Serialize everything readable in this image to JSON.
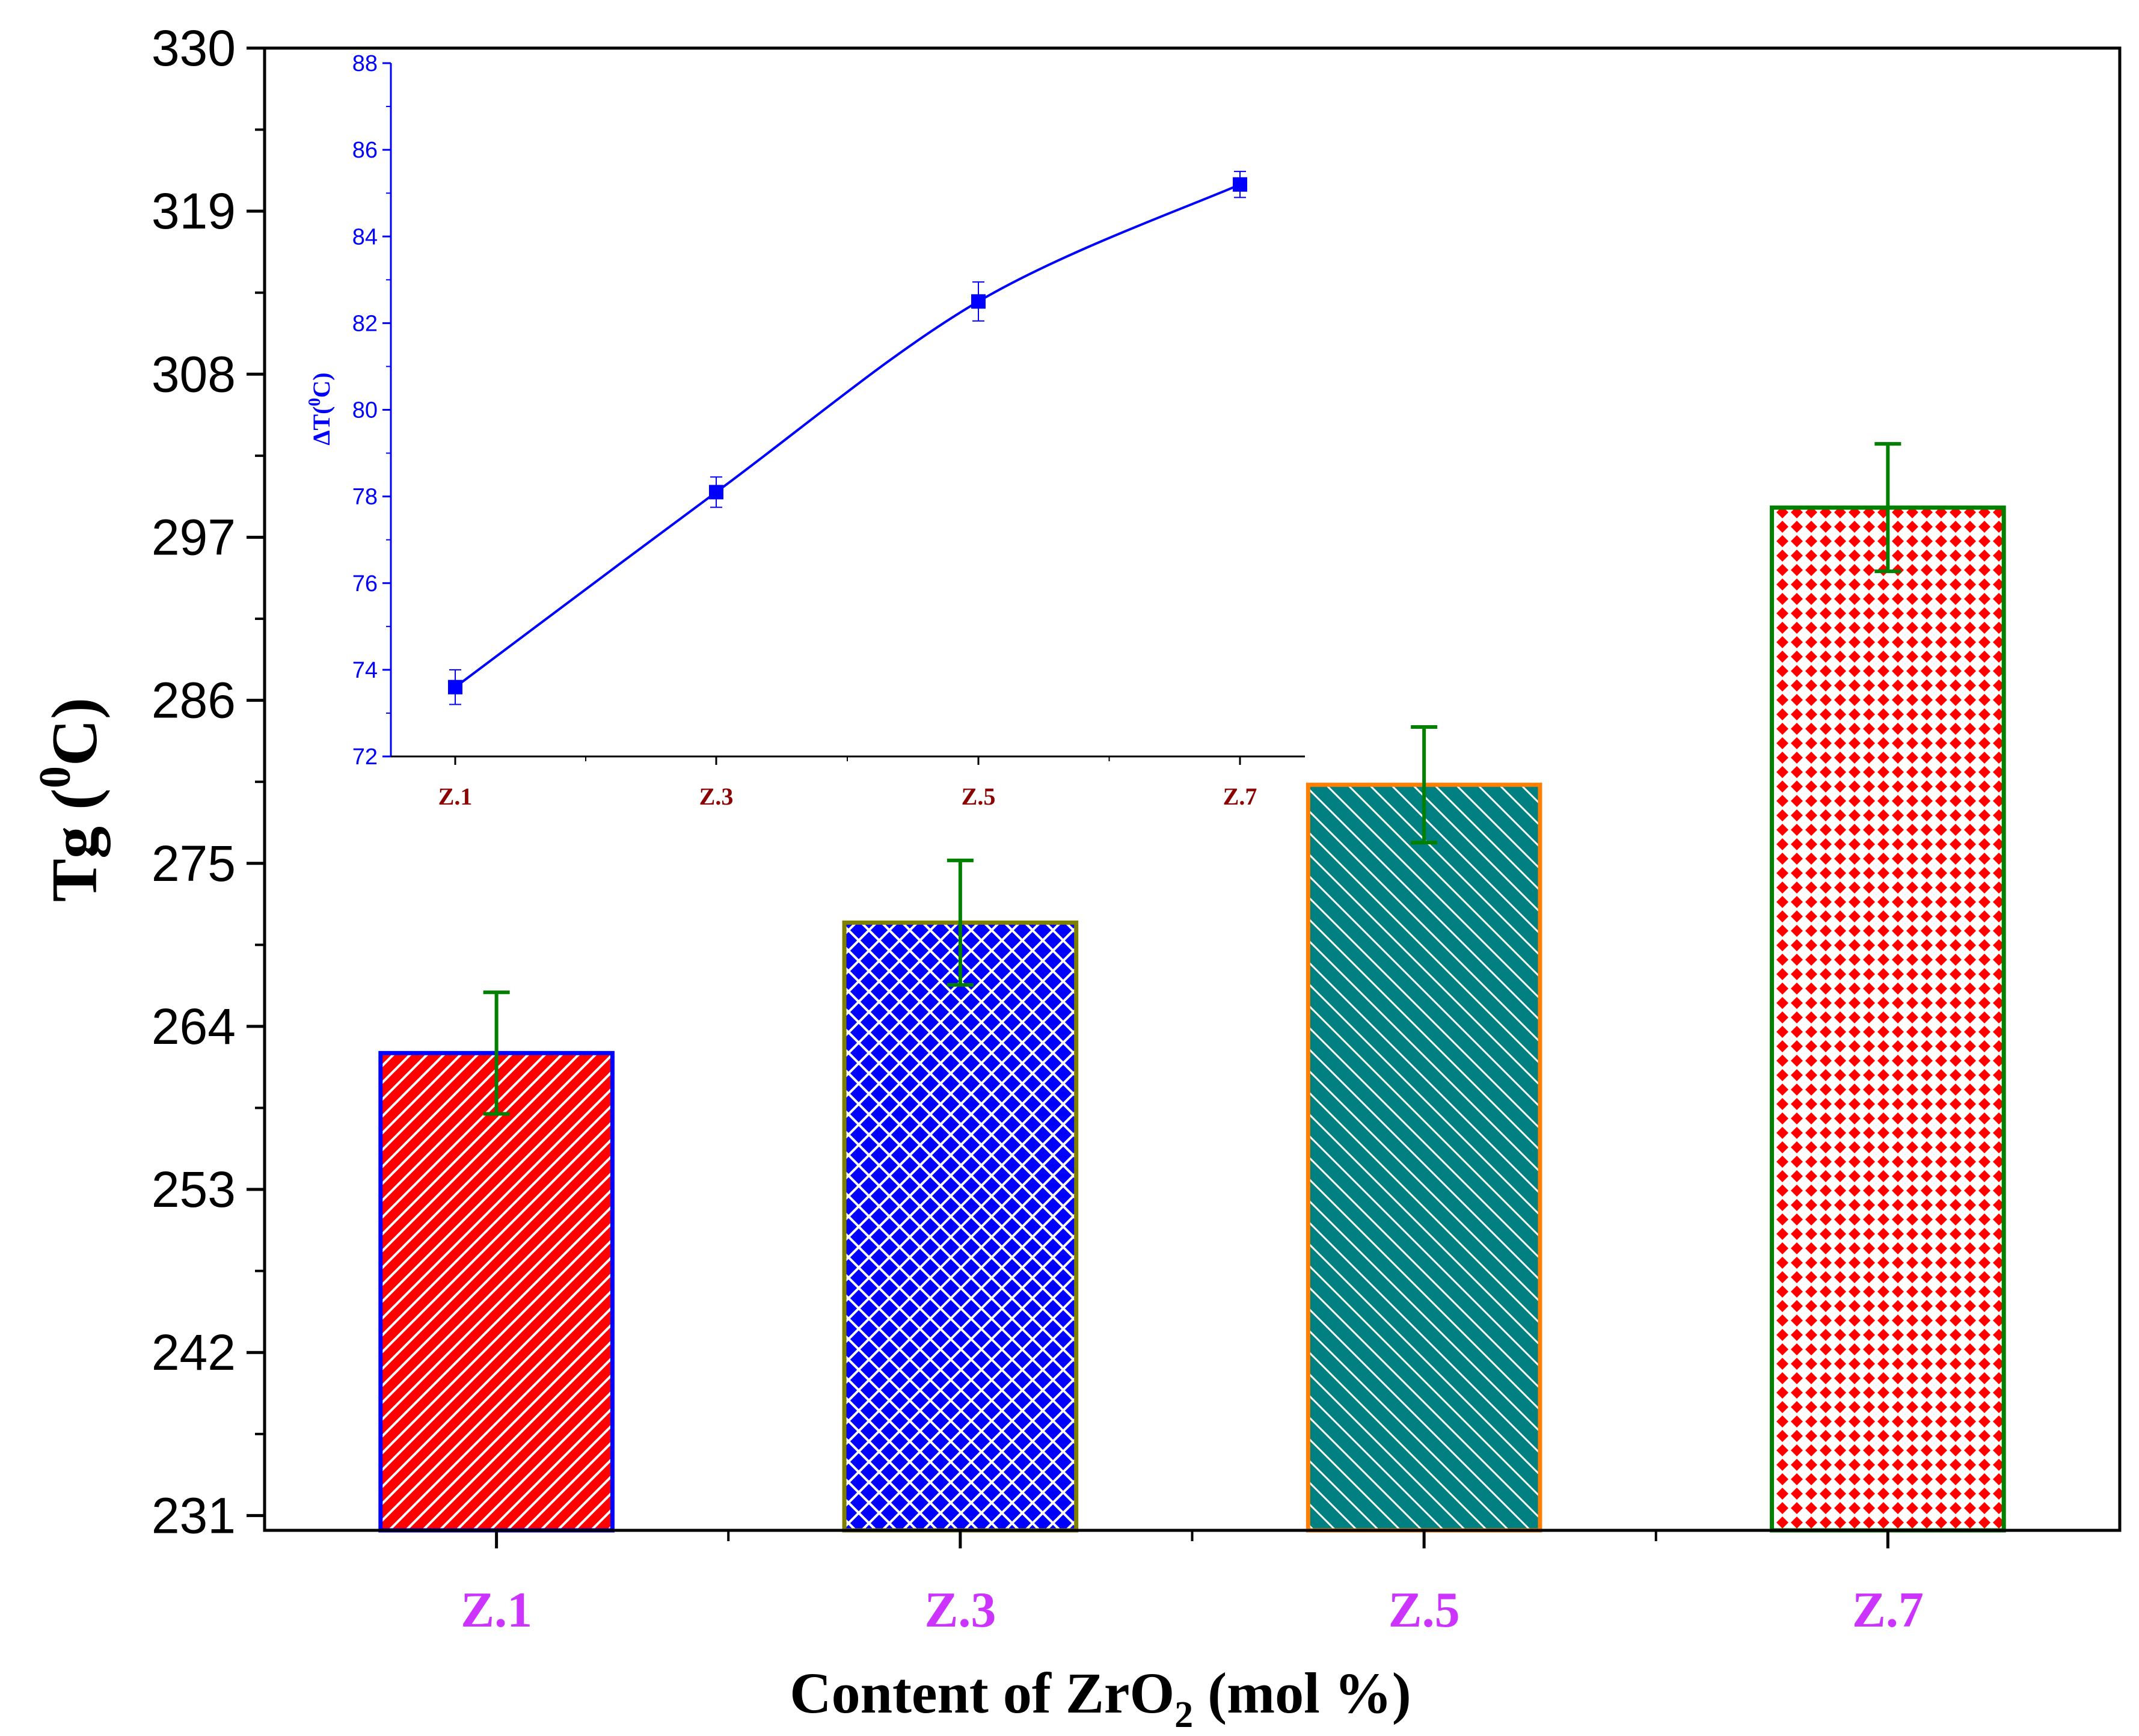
{
  "chart_data": [
    {
      "type": "bar",
      "xlabel_parts": [
        "Content of  ZrO",
        "2",
        " (mol %)"
      ],
      "ylabel_parts": [
        "Tg (",
        "0",
        "C)"
      ],
      "categories": [
        "Z.1",
        "Z.3",
        "Z.5",
        "Z.7"
      ],
      "values": [
        262.2,
        271,
        280.3,
        299
      ],
      "errors": [
        4.1,
        4.2,
        3.9,
        4.3
      ],
      "ylim": [
        230,
        330
      ],
      "yticks": [
        "231",
        "242",
        "253",
        "264",
        "275",
        "286",
        "297",
        "308",
        "319",
        "330"
      ],
      "bar_fills": [
        "#ff0000",
        "#0000ff",
        "#008080",
        "#ff0000"
      ],
      "bar_edges": [
        "#0000ff",
        "#808000",
        "#ff8000",
        "#008000"
      ],
      "patterns": [
        "diagonal-up",
        "crosshatch",
        "diagonal-down",
        "diamond-grid"
      ],
      "error_color": "#008000",
      "category_label_color": "#cc33ff"
    },
    {
      "type": "line",
      "ylabel_parts": [
        "ΔT(",
        "0",
        "C)"
      ],
      "categories": [
        "Z.1",
        "Z.3",
        "Z.5",
        "Z.7"
      ],
      "values": [
        73.6,
        78.1,
        82.5,
        85.2
      ],
      "errors": [
        0.4,
        0.35,
        0.45,
        0.3
      ],
      "ylim": [
        72,
        88
      ],
      "yticks": [
        "72",
        "74",
        "76",
        "78",
        "80",
        "82",
        "84",
        "86",
        "88"
      ],
      "line_color": "#0000ff",
      "category_label_color": "#8b0000"
    }
  ]
}
